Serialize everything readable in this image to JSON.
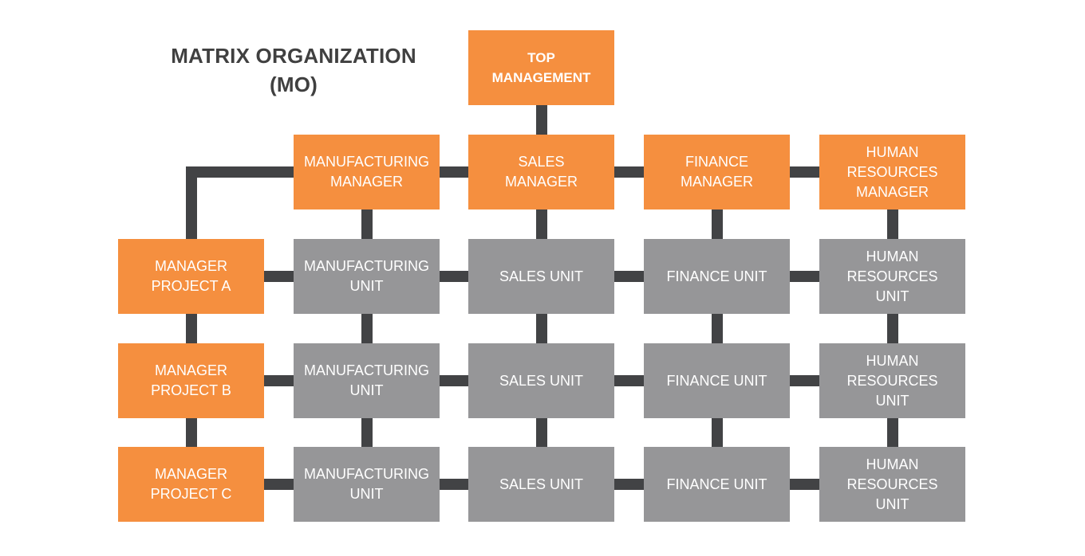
{
  "title": [
    "MATRIX ORGANIZATION",
    "(MO)"
  ],
  "top": [
    "TOP",
    "MANAGEMENT"
  ],
  "functional_managers": [
    [
      "MANUFACTURING",
      "MANAGER"
    ],
    [
      "SALES",
      "MANAGER"
    ],
    [
      "FINANCE",
      "MANAGER"
    ],
    [
      "HUMAN",
      "RESOURCES",
      "MANAGER"
    ]
  ],
  "project_managers": [
    [
      "MANAGER",
      "PROJECT A"
    ],
    [
      "MANAGER",
      "PROJECT B"
    ],
    [
      "MANAGER",
      "PROJECT C"
    ]
  ],
  "units": [
    [
      "MANUFACTURING",
      "UNIT"
    ],
    [
      "SALES UNIT"
    ],
    [
      "FINANCE UNIT"
    ],
    [
      "HUMAN",
      "RESOURCES",
      "UNIT"
    ]
  ],
  "colors": {
    "manager": "#f58f3f",
    "unit": "#969698",
    "connector": "#424345",
    "title": "#404040"
  }
}
